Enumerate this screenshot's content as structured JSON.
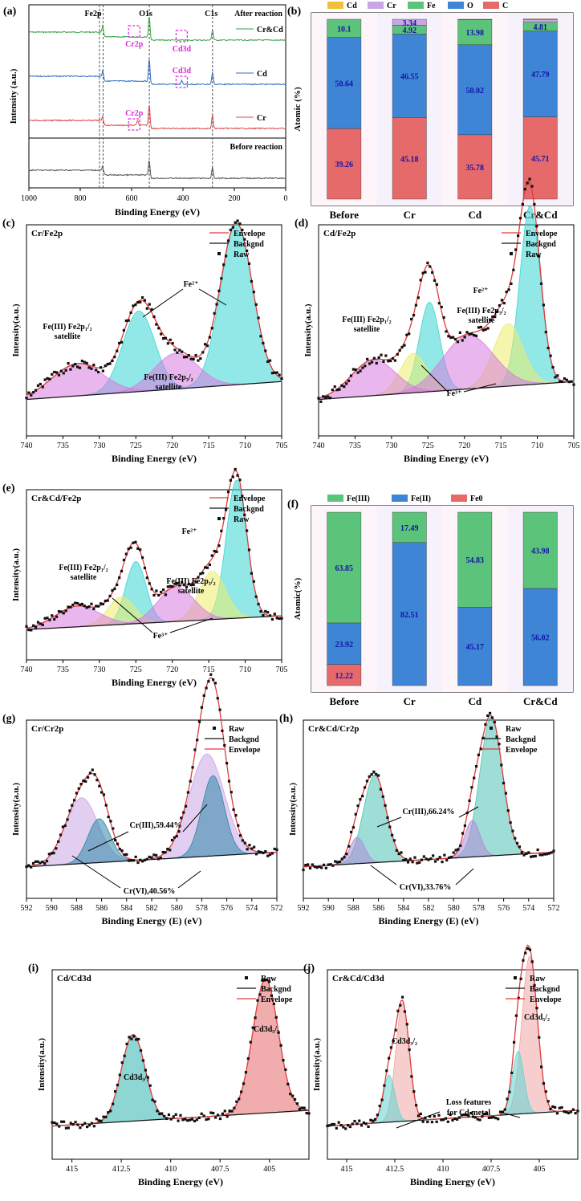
{
  "chart_data": [
    {
      "panel": "(a)",
      "type": "line",
      "title": "",
      "xlabel": "Binding Energy (eV)",
      "ylabel": "Intensity (a.u.)",
      "xlim": [
        1000,
        0
      ],
      "xticks": [
        1000,
        800,
        600,
        400,
        200,
        0
      ],
      "peak_labels": [
        "Fe2p",
        "O1s",
        "C1s"
      ],
      "peak_positions": [
        725,
        711,
        531,
        285
      ],
      "region_labels": [
        "After reaction",
        "Before reaction"
      ],
      "series": [
        {
          "name": "Cr&Cd",
          "color": "#3aa24a",
          "peaks": [
            {
              "x": 711,
              "h": 0.35
            },
            {
              "x": 531,
              "h": 1.0
            },
            {
              "x": 285,
              "h": 0.45
            }
          ]
        },
        {
          "name": "Cd",
          "color": "#2f6cc4",
          "peaks": [
            {
              "x": 711,
              "h": 0.3
            },
            {
              "x": 531,
              "h": 1.0
            },
            {
              "x": 405,
              "h": 0.15
            },
            {
              "x": 285,
              "h": 0.5
            }
          ]
        },
        {
          "name": "Cr",
          "color": "#e04a4a",
          "peaks": [
            {
              "x": 711,
              "h": 0.25
            },
            {
              "x": 577,
              "h": 0.2
            },
            {
              "x": 531,
              "h": 1.0
            },
            {
              "x": 285,
              "h": 0.6
            }
          ]
        },
        {
          "name": "Before reaction",
          "color": "#555555",
          "peaks": [
            {
              "x": 711,
              "h": 0.25
            },
            {
              "x": 531,
              "h": 0.8
            },
            {
              "x": 285,
              "h": 0.5
            }
          ]
        }
      ],
      "annotations": [
        "Cr2p",
        "Cd3d",
        "Cd3d",
        "Cr2p"
      ]
    },
    {
      "panel": "(b)",
      "type": "bar",
      "stacked": true,
      "ylabel": "Atomic (%)",
      "categories": [
        "Before",
        "Cr",
        "Cd",
        "Cr&Cd"
      ],
      "series": [
        {
          "name": "C",
          "color": "#e66a6a",
          "values": [
            39.26,
            45.18,
            35.78,
            45.71
          ]
        },
        {
          "name": "O",
          "color": "#3f85d6",
          "values": [
            50.64,
            46.55,
            50.02,
            47.79
          ]
        },
        {
          "name": "Fe",
          "color": "#5cc47a",
          "values": [
            10.1,
            4.92,
            13.98,
            4.81
          ]
        },
        {
          "name": "Cr",
          "color": "#c8a6e6",
          "values": [
            0,
            3.34,
            0,
            1.59
          ]
        },
        {
          "name": "Cd",
          "color": "#f2c037",
          "values": [
            0,
            0,
            0.22,
            0.3
          ]
        }
      ],
      "ylim": [
        0,
        100
      ]
    },
    {
      "panel": "(c)",
      "type": "line",
      "title": "Cr/Fe2p",
      "xlabel": "Binding Energy (eV)",
      "ylabel": "Intensity(a.u.)",
      "xlim": [
        740,
        705
      ],
      "xticks": [
        740,
        735,
        730,
        725,
        720,
        715,
        710,
        705
      ],
      "legend": [
        "Envelope",
        "Backgnd",
        "Raw"
      ],
      "components": [
        {
          "center": 724.6,
          "amp": 0.45,
          "width": 2.2,
          "color": "#39d6d2"
        },
        {
          "center": 711.2,
          "amp": 0.9,
          "width": 2.2,
          "color": "#39d6d2"
        },
        {
          "center": 733.0,
          "amp": 0.18,
          "width": 3.5,
          "color": "#d77ae0"
        },
        {
          "center": 719.5,
          "amp": 0.2,
          "width": 3.0,
          "color": "#d77ae0"
        }
      ],
      "annotations": [
        "Fe2+",
        "Fe(III) Fe2p1/2 satellite",
        "Fe(III) Fe2p3/2 satellite"
      ]
    },
    {
      "panel": "(d)",
      "type": "line",
      "title": "Cd/Fe2p",
      "xlabel": "Binding Energy (eV)",
      "ylabel": "Intensity(a.u.)",
      "xlim": [
        740,
        705
      ],
      "xticks": [
        740,
        735,
        730,
        725,
        720,
        715,
        710,
        705
      ],
      "legend": [
        "Envelope",
        "Backgnd",
        "Raw"
      ],
      "components": [
        {
          "center": 724.8,
          "amp": 0.5,
          "width": 1.4,
          "color": "#39d6d2"
        },
        {
          "center": 711.0,
          "amp": 1.0,
          "width": 1.4,
          "color": "#39d6d2"
        },
        {
          "center": 727.0,
          "amp": 0.22,
          "width": 1.8,
          "color": "#ecec6a"
        },
        {
          "center": 714.0,
          "amp": 0.35,
          "width": 2.0,
          "color": "#ecec6a"
        },
        {
          "center": 732.5,
          "amp": 0.2,
          "width": 3.0,
          "color": "#d77ae0"
        },
        {
          "center": 719.5,
          "amp": 0.3,
          "width": 3.5,
          "color": "#d77ae0"
        }
      ],
      "annotations": [
        "Fe2+",
        "Fe3+",
        "Fe(III) Fe2p1/2 satellite",
        "Fe(III) Fe2p3/2 satellite"
      ]
    },
    {
      "panel": "(e)",
      "type": "line",
      "title": "Cr&Cd/Fe2p",
      "xlabel": "Binding Energy (eV)",
      "ylabel": "Intensity(a.u.)",
      "xlim": [
        740,
        705
      ],
      "xticks": [
        740,
        735,
        730,
        725,
        720,
        715,
        710,
        705
      ],
      "legend": [
        "Envelope",
        "Backgnd",
        "Raw"
      ],
      "components": [
        {
          "center": 725.0,
          "amp": 0.45,
          "width": 1.4,
          "color": "#39d6d2"
        },
        {
          "center": 711.2,
          "amp": 1.0,
          "width": 1.4,
          "color": "#39d6d2"
        },
        {
          "center": 727.0,
          "amp": 0.2,
          "width": 1.8,
          "color": "#ecec6a"
        },
        {
          "center": 714.5,
          "amp": 0.35,
          "width": 1.8,
          "color": "#ecec6a"
        },
        {
          "center": 733.0,
          "amp": 0.15,
          "width": 3.0,
          "color": "#d77ae0"
        },
        {
          "center": 719.5,
          "amp": 0.25,
          "width": 2.5,
          "color": "#d77ae0"
        }
      ],
      "annotations": [
        "Fe2+",
        "Fe3+",
        "Fe(III) Fe2p1/2 satellite",
        "Fe(III) Fe2p3/2 satellite"
      ]
    },
    {
      "panel": "(f)",
      "type": "bar",
      "stacked": true,
      "ylabel": "Atomic(%)",
      "categories": [
        "Before",
        "Cr",
        "Cd",
        "Cr&Cd"
      ],
      "series": [
        {
          "name": "Fe0",
          "color": "#e66a6a",
          "values": [
            12.22,
            0,
            0,
            0
          ]
        },
        {
          "name": "Fe(II)",
          "color": "#3f85d6",
          "values": [
            23.92,
            82.51,
            45.17,
            56.02
          ]
        },
        {
          "name": "Fe(III)",
          "color": "#5cc47a",
          "values": [
            63.85,
            17.49,
            54.83,
            43.98
          ]
        }
      ],
      "ylim": [
        0,
        100
      ]
    },
    {
      "panel": "(g)",
      "type": "line",
      "title": "Cr/Cr2p",
      "xlabel": "Binding Energy (E) (eV)",
      "ylabel": "Intensity(a.u.)",
      "xlim": [
        592,
        572
      ],
      "xticks": [
        592,
        590,
        588,
        586,
        584,
        582,
        580,
        578,
        576,
        574,
        572
      ],
      "legend": [
        "Raw",
        "Backgnd",
        "Envelope"
      ],
      "components": [
        {
          "center": 587.6,
          "amp": 0.45,
          "width": 1.3,
          "color": "#c8a6e6"
        },
        {
          "center": 586.2,
          "amp": 0.3,
          "width": 0.9,
          "color": "#2f86a8"
        },
        {
          "center": 577.6,
          "amp": 0.7,
          "width": 1.4,
          "color": "#c8a6e6"
        },
        {
          "center": 577.1,
          "amp": 0.55,
          "width": 0.9,
          "color": "#2f86a8"
        }
      ],
      "annotations": [
        "Cr(III),59.44%",
        "Cr(VI),40.56%"
      ]
    },
    {
      "panel": "(h)",
      "type": "line",
      "title": "Cr&Cd/Cr2p",
      "xlabel": "Binding Energy (E) (eV)",
      "ylabel": "Intensity(a.u.)",
      "xlim": [
        592,
        572
      ],
      "xticks": [
        592,
        590,
        588,
        586,
        584,
        582,
        580,
        578,
        576,
        574,
        572
      ],
      "legend": [
        "Raw",
        "Backgnd",
        "Envelope"
      ],
      "components": [
        {
          "center": 586.3,
          "amp": 0.6,
          "width": 0.9,
          "color": "#50c2b4"
        },
        {
          "center": 587.7,
          "amp": 0.18,
          "width": 0.6,
          "color": "#b18ad8"
        },
        {
          "center": 577.0,
          "amp": 0.95,
          "width": 0.9,
          "color": "#50c2b4"
        },
        {
          "center": 578.5,
          "amp": 0.25,
          "width": 0.6,
          "color": "#b18ad8"
        }
      ],
      "annotations": [
        "Cr(III),66.24%",
        "Cr(VI),33.76%"
      ]
    },
    {
      "panel": "(i)",
      "type": "line",
      "title": "Cd/Cd3d",
      "xlabel": "Binding Energy (eV)",
      "ylabel": "Intensity(a.u.)",
      "xlim": [
        416,
        403
      ],
      "xticks": [
        415.0,
        412.5,
        410.0,
        407.5,
        405.0
      ],
      "legend": [
        "Raw",
        "Backgnd",
        "Envelope"
      ],
      "components": [
        {
          "center": 411.9,
          "amp": 0.55,
          "width": 0.6,
          "color": "#2fb4b1"
        },
        {
          "center": 405.2,
          "amp": 0.85,
          "width": 0.65,
          "color": "#e66a6a"
        }
      ],
      "annotations": [
        "Cd3d3/2",
        "Cd3d5/2"
      ]
    },
    {
      "panel": "(j)",
      "type": "line",
      "title": "Cr&Cd/Cd3d",
      "xlabel": "Binding Energy (eV)",
      "ylabel": "Intensity(a.u.)",
      "xlim": [
        416,
        403
      ],
      "xticks": [
        415.0,
        412.5,
        410.0,
        407.5,
        405.0
      ],
      "legend": [
        "Raw",
        "Backgnd",
        "Envelope"
      ],
      "components": [
        {
          "center": 412.1,
          "amp": 0.75,
          "width": 0.35,
          "color": "#f0a5a5"
        },
        {
          "center": 412.8,
          "amp": 0.3,
          "width": 0.3,
          "color": "#5fd6d2"
        },
        {
          "center": 405.5,
          "amp": 1.0,
          "width": 0.4,
          "color": "#f0a5a5"
        },
        {
          "center": 406.1,
          "amp": 0.4,
          "width": 0.3,
          "color": "#5fd6d2"
        }
      ],
      "annotations": [
        "Cd3d3/2",
        "Cd3d5/2",
        "Loss features for Cd metal"
      ]
    }
  ]
}
